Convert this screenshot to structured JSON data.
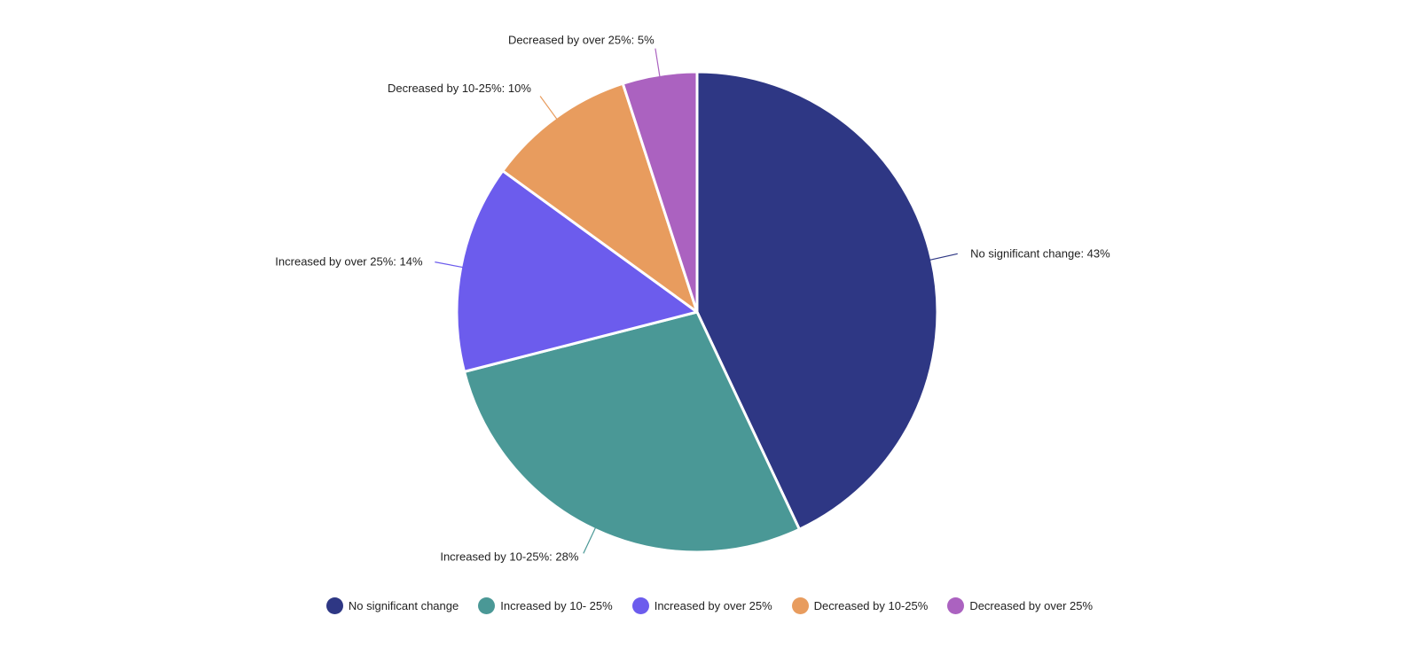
{
  "chart_data": {
    "type": "pie",
    "title": "",
    "categories": [
      "No significant change",
      "Increased by 10-25%",
      "Increased by over 25%",
      "Decreased by 10-25%",
      "Decreased by over 25%"
    ],
    "values": [
      43,
      28,
      14,
      10,
      5
    ],
    "unit": "%",
    "slice_labels": [
      "No significant change: 43%",
      "Increased by 10-25%: 28%",
      "Increased by over 25%: 14%",
      "Decreased by 10-25%: 10%",
      "Decreased by over 25%: 5%"
    ],
    "colors": [
      "#2e3784",
      "#4a9896",
      "#6c5ced",
      "#e89c5e",
      "#ab62c0"
    ],
    "legend": {
      "placement": "bottom",
      "entries": [
        "No significant change",
        "Increased by 10- 25%",
        "Increased by over 25%",
        "Decreased by 10-25%",
        "Decreased by over 25%"
      ]
    }
  }
}
